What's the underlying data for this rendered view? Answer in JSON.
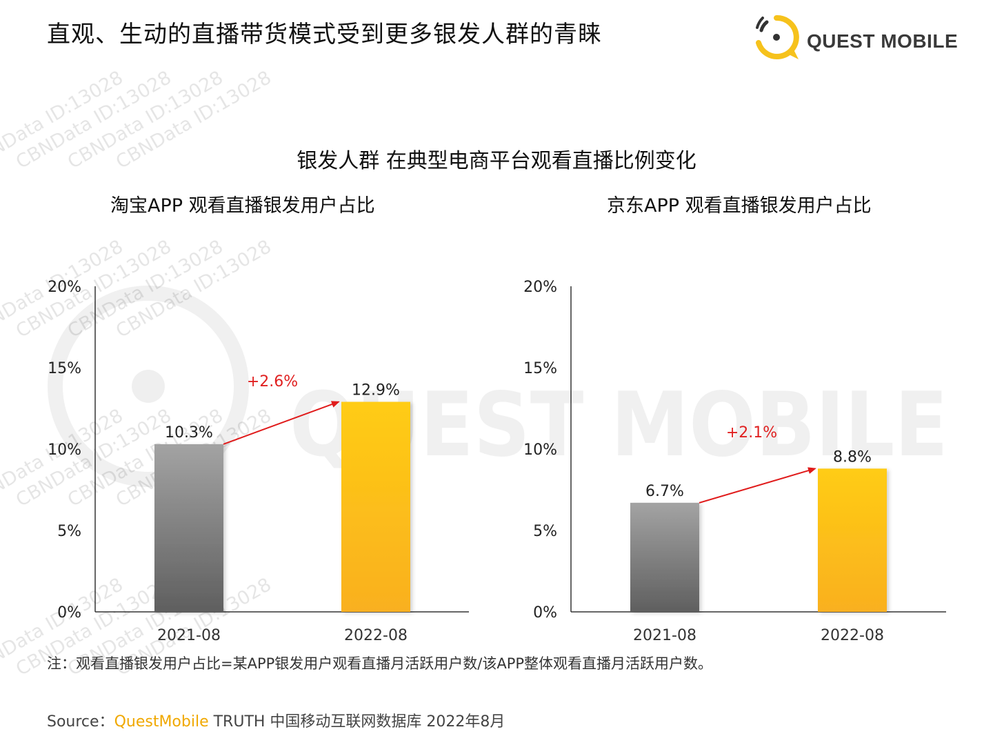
{
  "header": {
    "title": "直观、生动的直播带货模式受到更多银发人群的青睐",
    "logo_text": "QUEST MOBILE"
  },
  "main_title": "银发人群 在典型电商平台观看直播比例变化",
  "watermark": {
    "text": "CBNData ID:13028",
    "brand_text": "QUEST MOBILE"
  },
  "colors": {
    "bar_2021": "#7d7d7d",
    "bar_2022": "#fbbf1c",
    "arrow": "#e01b1b",
    "delta_text": "#e02020",
    "logo_accent": "#f6c21c"
  },
  "chart_data": [
    {
      "type": "bar",
      "title": "淘宝APP 观看直播银发用户占比",
      "categories": [
        "2021-08",
        "2022-08"
      ],
      "values": [
        10.3,
        12.9
      ],
      "value_labels": [
        "10.3%",
        "12.9%"
      ],
      "y_ticks": [
        "0%",
        "5%",
        "10%",
        "15%",
        "20%"
      ],
      "ylim": [
        0,
        20
      ],
      "delta_label": "+2.6%"
    },
    {
      "type": "bar",
      "title": "京东APP 观看直播银发用户占比",
      "categories": [
        "2021-08",
        "2022-08"
      ],
      "values": [
        6.7,
        8.8
      ],
      "value_labels": [
        "6.7%",
        "8.8%"
      ],
      "y_ticks": [
        "0%",
        "5%",
        "10%",
        "15%",
        "20%"
      ],
      "ylim": [
        0,
        20
      ],
      "delta_label": "+2.1%"
    }
  ],
  "note": "注：观看直播银发用户占比=某APP银发用户观看直播月活跃用户数/该APP整体观看直播月活跃用户数。",
  "source": {
    "prefix": "Source：",
    "brand": "QuestMobile",
    "rest": " TRUTH 中国移动互联网数据库 2022年8月"
  }
}
